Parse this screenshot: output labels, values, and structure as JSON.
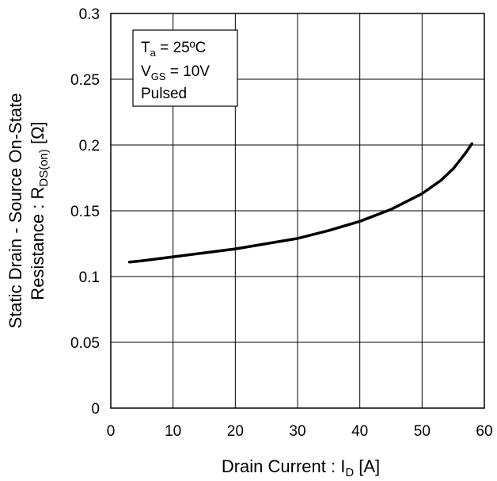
{
  "chart_data": {
    "type": "line",
    "title": "",
    "xlabel": {
      "main": "Drain Current : I",
      "sub": "D",
      "unit": " [A]"
    },
    "ylabel": {
      "line1": "Static Drain - Source On-State",
      "line2_main": "Resistance : R",
      "line2_sub": "DS(on)",
      "line2_unit": " [Ω]"
    },
    "xlim": [
      0,
      60
    ],
    "ylim": [
      0,
      0.3
    ],
    "x_ticks": [
      "0",
      "10",
      "20",
      "30",
      "40",
      "50",
      "60"
    ],
    "y_ticks": [
      "0",
      "0.05",
      "0.1",
      "0.15",
      "0.2",
      "0.25",
      "0.3"
    ],
    "grid": true,
    "legend_box": {
      "line1_main": "T",
      "line1_sub": "a",
      "line1_rest": " = 25ºC",
      "line2_main": "V",
      "line2_sub": "GS",
      "line2_rest": " = 10V",
      "line3": "Pulsed"
    },
    "series": [
      {
        "x": [
          3,
          5,
          10,
          15,
          20,
          25,
          30,
          35,
          40,
          45,
          50,
          53,
          55,
          57,
          58
        ],
        "y": [
          0.111,
          0.112,
          0.115,
          0.118,
          0.121,
          0.125,
          0.129,
          0.135,
          0.142,
          0.151,
          0.163,
          0.173,
          0.182,
          0.194,
          0.201
        ]
      }
    ]
  }
}
